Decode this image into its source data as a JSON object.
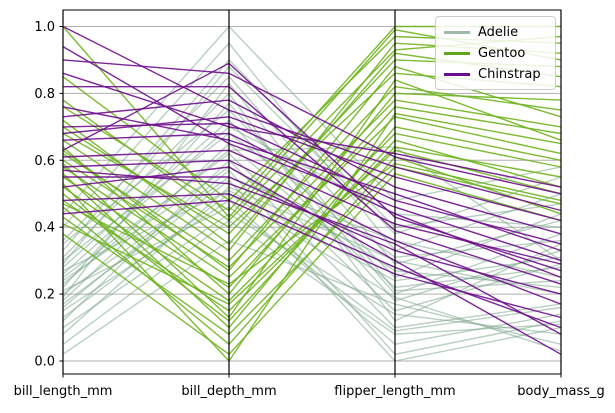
{
  "figure": {
    "background": "#ffffff",
    "grid_color": "#b0b0b0",
    "axis_color": "#000000",
    "tick_label_color": "#000000"
  },
  "legend": {
    "position": "upper-right",
    "labels": [
      "Adelie",
      "Gentoo",
      "Chinstrap"
    ]
  },
  "chart_data": {
    "type": "line",
    "subtype": "parallel-coordinates",
    "title": "",
    "xlabel": "",
    "ylabel": "",
    "normalized": true,
    "grid": "horizontal",
    "ylim": [
      0.0,
      1.0
    ],
    "yticks": [
      0.0,
      0.2,
      0.4,
      0.6,
      0.8,
      1.0
    ],
    "ytick_labels": [
      "0.0",
      "0.2",
      "0.4",
      "0.6",
      "0.8",
      "1.0"
    ],
    "axes": [
      "bill_length_mm",
      "bill_depth_mm",
      "flipper_length_mm",
      "body_mass_g"
    ],
    "series": [
      {
        "name": "Adelie",
        "color": "#7FA78E",
        "legend_color": "#9FB9AB",
        "opacity": 0.55,
        "values": [
          [
            0.25,
            0.62,
            0.15,
            0.29
          ],
          [
            0.27,
            0.51,
            0.24,
            0.31
          ],
          [
            0.3,
            0.68,
            0.31,
            0.36
          ],
          [
            0.12,
            0.6,
            0.1,
            0.17
          ],
          [
            0.22,
            0.77,
            0.2,
            0.38
          ],
          [
            0.36,
            0.85,
            0.29,
            0.42
          ],
          [
            0.05,
            0.42,
            0.08,
            0.11
          ],
          [
            0.2,
            0.55,
            0.36,
            0.25
          ],
          [
            0.28,
            0.72,
            0.18,
            0.33
          ],
          [
            0.15,
            0.48,
            0.05,
            0.14
          ],
          [
            0.33,
            0.9,
            0.4,
            0.47
          ],
          [
            0.24,
            0.58,
            0.27,
            0.22
          ],
          [
            0.1,
            0.44,
            0.14,
            0.08
          ],
          [
            0.4,
            0.95,
            0.33,
            0.5
          ],
          [
            0.18,
            0.65,
            0.22,
            0.28
          ],
          [
            0.31,
            0.8,
            0.12,
            0.35
          ],
          [
            0.08,
            0.52,
            0.3,
            0.2
          ],
          [
            0.26,
            0.7,
            0.44,
            0.4
          ],
          [
            0.21,
            0.46,
            0.09,
            0.16
          ],
          [
            0.35,
            0.75,
            0.25,
            0.44
          ],
          [
            0.02,
            0.36,
            0.17,
            0.05
          ],
          [
            0.29,
            0.88,
            0.38,
            0.55
          ],
          [
            0.16,
            0.57,
            0.02,
            0.12
          ],
          [
            0.44,
            1.0,
            0.48,
            0.58
          ],
          [
            0.23,
            0.63,
            0.64,
            0.3
          ],
          [
            0.19,
            0.83,
            0.21,
            0.24
          ],
          [
            0.13,
            0.5,
            0.19,
            0.03
          ],
          [
            0.17,
            0.54,
            0.0,
            0.1
          ]
        ]
      },
      {
        "name": "Gentoo",
        "color": "#6FB41E",
        "legend_color": "#5FA51E",
        "opacity": 0.9,
        "values": [
          [
            0.55,
            0.22,
            0.76,
            0.68
          ],
          [
            0.48,
            0.15,
            0.64,
            0.55
          ],
          [
            0.62,
            0.3,
            0.82,
            0.75
          ],
          [
            0.7,
            0.38,
            0.9,
            0.88
          ],
          [
            0.43,
            0.08,
            0.58,
            0.47
          ],
          [
            0.58,
            0.25,
            0.73,
            0.62
          ],
          [
            0.66,
            0.33,
            0.95,
            0.92
          ],
          [
            0.52,
            0.18,
            0.68,
            0.58
          ],
          [
            0.76,
            0.45,
            1.0,
            1.0
          ],
          [
            0.46,
            0.05,
            0.61,
            0.44
          ],
          [
            0.6,
            0.28,
            0.78,
            0.7
          ],
          [
            0.68,
            0.4,
            0.86,
            0.82
          ],
          [
            0.38,
            0.02,
            0.56,
            0.42
          ],
          [
            0.72,
            0.35,
            0.92,
            0.85
          ],
          [
            0.5,
            0.12,
            0.66,
            0.52
          ],
          [
            0.64,
            0.2,
            0.8,
            0.78
          ],
          [
            0.85,
            0.48,
            0.97,
            0.95
          ],
          [
            0.56,
            0.1,
            0.7,
            0.6
          ],
          [
            0.41,
            0.17,
            0.63,
            0.5
          ],
          [
            1.0,
            0.43,
            0.99,
            0.9
          ],
          [
            0.53,
            0.0,
            0.74,
            0.65
          ],
          [
            0.63,
            0.27,
            0.88,
            0.73
          ],
          [
            0.47,
            0.23,
            0.59,
            0.48
          ],
          [
            0.78,
            0.42,
            0.93,
            0.97
          ],
          [
            0.59,
            0.13,
            0.84,
            0.66
          ]
        ]
      },
      {
        "name": "Chinstrap",
        "color": "#6E0D8C",
        "legend_color": "#6A0D8A",
        "opacity": 0.9,
        "values": [
          [
            0.61,
            0.63,
            0.41,
            0.29
          ],
          [
            0.7,
            0.71,
            0.48,
            0.35
          ],
          [
            0.55,
            0.55,
            0.33,
            0.2
          ],
          [
            1.0,
            0.75,
            0.58,
            0.45
          ],
          [
            0.66,
            0.68,
            0.44,
            0.25
          ],
          [
            0.48,
            0.5,
            0.28,
            0.1
          ],
          [
            0.9,
            0.86,
            0.61,
            0.5
          ],
          [
            0.58,
            0.6,
            0.36,
            0.17
          ],
          [
            0.73,
            0.78,
            0.52,
            0.38
          ],
          [
            0.94,
            0.65,
            0.46,
            0.3
          ],
          [
            0.52,
            0.58,
            0.3,
            0.02
          ],
          [
            0.68,
            0.73,
            0.55,
            0.42
          ],
          [
            0.82,
            0.82,
            0.39,
            0.23
          ],
          [
            0.44,
            0.48,
            0.26,
            0.13
          ],
          [
            0.76,
            0.66,
            0.5,
            0.33
          ],
          [
            0.63,
            0.89,
            0.43,
            0.27
          ],
          [
            0.86,
            0.7,
            0.62,
            0.52
          ],
          [
            0.57,
            0.53,
            0.35,
            0.08
          ]
        ]
      }
    ]
  }
}
